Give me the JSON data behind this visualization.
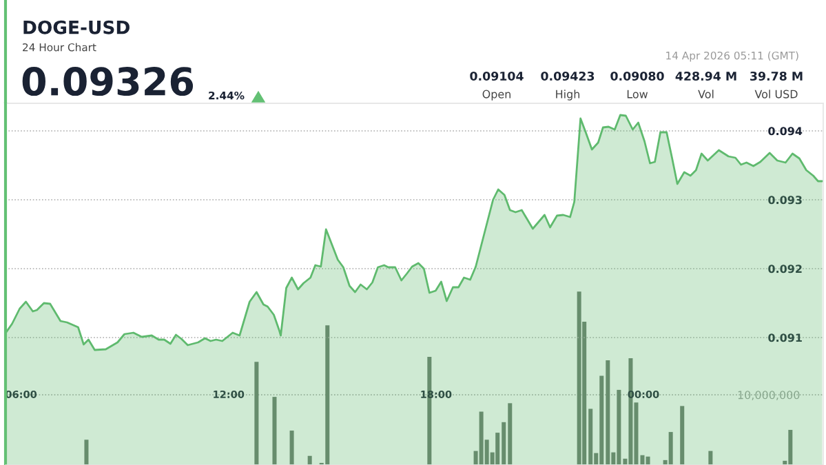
{
  "chart_data": {
    "type": "area",
    "title": "DOGE-USD",
    "subtitle": "24 Hour Chart",
    "annotations": [
      "0.09326",
      "2.44%",
      "14 Apr 2026 05:11 (GMT)",
      "0.09104",
      "Open",
      "0.09423",
      "High",
      "0.09080",
      "Low",
      "428.94 M",
      "Vol",
      "39.78 M",
      "Vol USD"
    ],
    "xlim": [
      5.55,
      29.2
    ],
    "xticks": [
      {
        "value": 6,
        "label": "06:00"
      },
      {
        "value": 12,
        "label": "12:00"
      },
      {
        "value": 18,
        "label": "18:00"
      },
      {
        "value": 24,
        "label": "00:00"
      }
    ],
    "ylim": [
      0.08915,
      0.0944
    ],
    "yticks": [
      0.091,
      0.092,
      0.093,
      0.094
    ],
    "y2lim": [
      0,
      51500000
    ],
    "y2ticks": [
      {
        "value": 10000000,
        "label": "10,000,000"
      }
    ],
    "grid": "y",
    "line_style": "dotted",
    "series": [
      {
        "type": "bar",
        "axis": "y2",
        "color": "#6b7a6e",
        "x": [
          7.89,
          12.81,
          13.33,
          13.83,
          14.35,
          14.69,
          14.86,
          17.81,
          19.15,
          19.31,
          19.47,
          19.63,
          19.78,
          19.96,
          20.14,
          22.14,
          22.29,
          22.47,
          22.63,
          22.79,
          22.97,
          23.13,
          23.29,
          23.47,
          23.63,
          23.79,
          23.97,
          24.13,
          24.63,
          24.79,
          25.12,
          25.94,
          28.09,
          28.25
        ],
        "values": [
          3600000,
          14700000,
          9700000,
          4900000,
          1300000,
          300000,
          19900000,
          15400000,
          2000000,
          7600000,
          3600000,
          1800000,
          4600000,
          6100000,
          8800000,
          24700000,
          20400000,
          8000000,
          1700000,
          12700000,
          14900000,
          1800000,
          10700000,
          900000,
          15200000,
          8900000,
          1400000,
          1200000,
          700000,
          4700000,
          8400000,
          2000000,
          600000,
          5000000
        ]
      },
      {
        "axis": "y",
        "color": "#5fba6e",
        "x": [
          5.56,
          5.74,
          5.96,
          6.14,
          6.34,
          6.46,
          6.66,
          6.84,
          7.14,
          7.33,
          7.65,
          7.81,
          7.95,
          8.13,
          8.45,
          8.79,
          8.99,
          9.25,
          9.49,
          9.78,
          9.98,
          10.14,
          10.32,
          10.48,
          10.64,
          10.82,
          11.12,
          11.32,
          11.48,
          11.64,
          11.82,
          12.12,
          12.32,
          12.61,
          12.81,
          13.01,
          13.13,
          13.31,
          13.47,
          13.51,
          13.67,
          13.83,
          14.01,
          14.17,
          14.37,
          14.51,
          14.67,
          14.82,
          15.16,
          15.32,
          15.5,
          15.66,
          15.82,
          16.0,
          16.16,
          16.32,
          16.5,
          16.62,
          16.82,
          17.0,
          17.16,
          17.31,
          17.49,
          17.65,
          17.81,
          17.99,
          18.15,
          18.31,
          18.49,
          18.65,
          18.81,
          18.99,
          19.15,
          19.65,
          19.8,
          19.98,
          20.14,
          20.3,
          20.48,
          20.8,
          21.14,
          21.3,
          21.5,
          21.68,
          21.88,
          22.0,
          22.18,
          22.33,
          22.51,
          22.69,
          22.83,
          22.99,
          23.17,
          23.33,
          23.49,
          23.69,
          23.85,
          24.03,
          24.19,
          24.33,
          24.49,
          24.67,
          24.83,
          24.98,
          25.18,
          25.36,
          25.52,
          25.68,
          25.86,
          26.18,
          26.46,
          26.66,
          26.82,
          26.98,
          27.18,
          27.38,
          27.65,
          27.87,
          28.11,
          28.31,
          28.51,
          28.71,
          28.91,
          29.05,
          29.17
        ],
        "values": [
          0.09107,
          0.0912,
          0.09142,
          0.09152,
          0.09138,
          0.0914,
          0.0915,
          0.09149,
          0.09124,
          0.09122,
          0.09115,
          0.0909,
          0.09097,
          0.09082,
          0.09083,
          0.09093,
          0.09105,
          0.09107,
          0.09101,
          0.09103,
          0.09097,
          0.09097,
          0.09091,
          0.09104,
          0.09098,
          0.09089,
          0.09093,
          0.09099,
          0.09095,
          0.09097,
          0.09095,
          0.09107,
          0.09103,
          0.09152,
          0.09166,
          0.09148,
          0.09145,
          0.09133,
          0.0911,
          0.09103,
          0.09172,
          0.09187,
          0.0917,
          0.09179,
          0.09187,
          0.09205,
          0.09203,
          0.09257,
          0.09213,
          0.09202,
          0.09175,
          0.09166,
          0.09177,
          0.0917,
          0.0918,
          0.09202,
          0.09205,
          0.09202,
          0.09202,
          0.09183,
          0.09193,
          0.09203,
          0.09208,
          0.092,
          0.09165,
          0.09168,
          0.09181,
          0.09153,
          0.09173,
          0.09173,
          0.09187,
          0.09184,
          0.09203,
          0.093,
          0.09315,
          0.09307,
          0.09285,
          0.09282,
          0.09285,
          0.09258,
          0.09278,
          0.0926,
          0.09277,
          0.09278,
          0.09275,
          0.09297,
          0.09418,
          0.09398,
          0.09373,
          0.09383,
          0.09405,
          0.09406,
          0.09402,
          0.09423,
          0.09422,
          0.09402,
          0.09412,
          0.09385,
          0.09353,
          0.09355,
          0.09398,
          0.09398,
          0.0936,
          0.09323,
          0.0934,
          0.09335,
          0.09343,
          0.09367,
          0.09357,
          0.09372,
          0.09363,
          0.09361,
          0.09351,
          0.09354,
          0.09349,
          0.09355,
          0.09368,
          0.09357,
          0.09354,
          0.09367,
          0.0936,
          0.09343,
          0.09335,
          0.09327,
          0.09327
        ]
      }
    ]
  }
}
